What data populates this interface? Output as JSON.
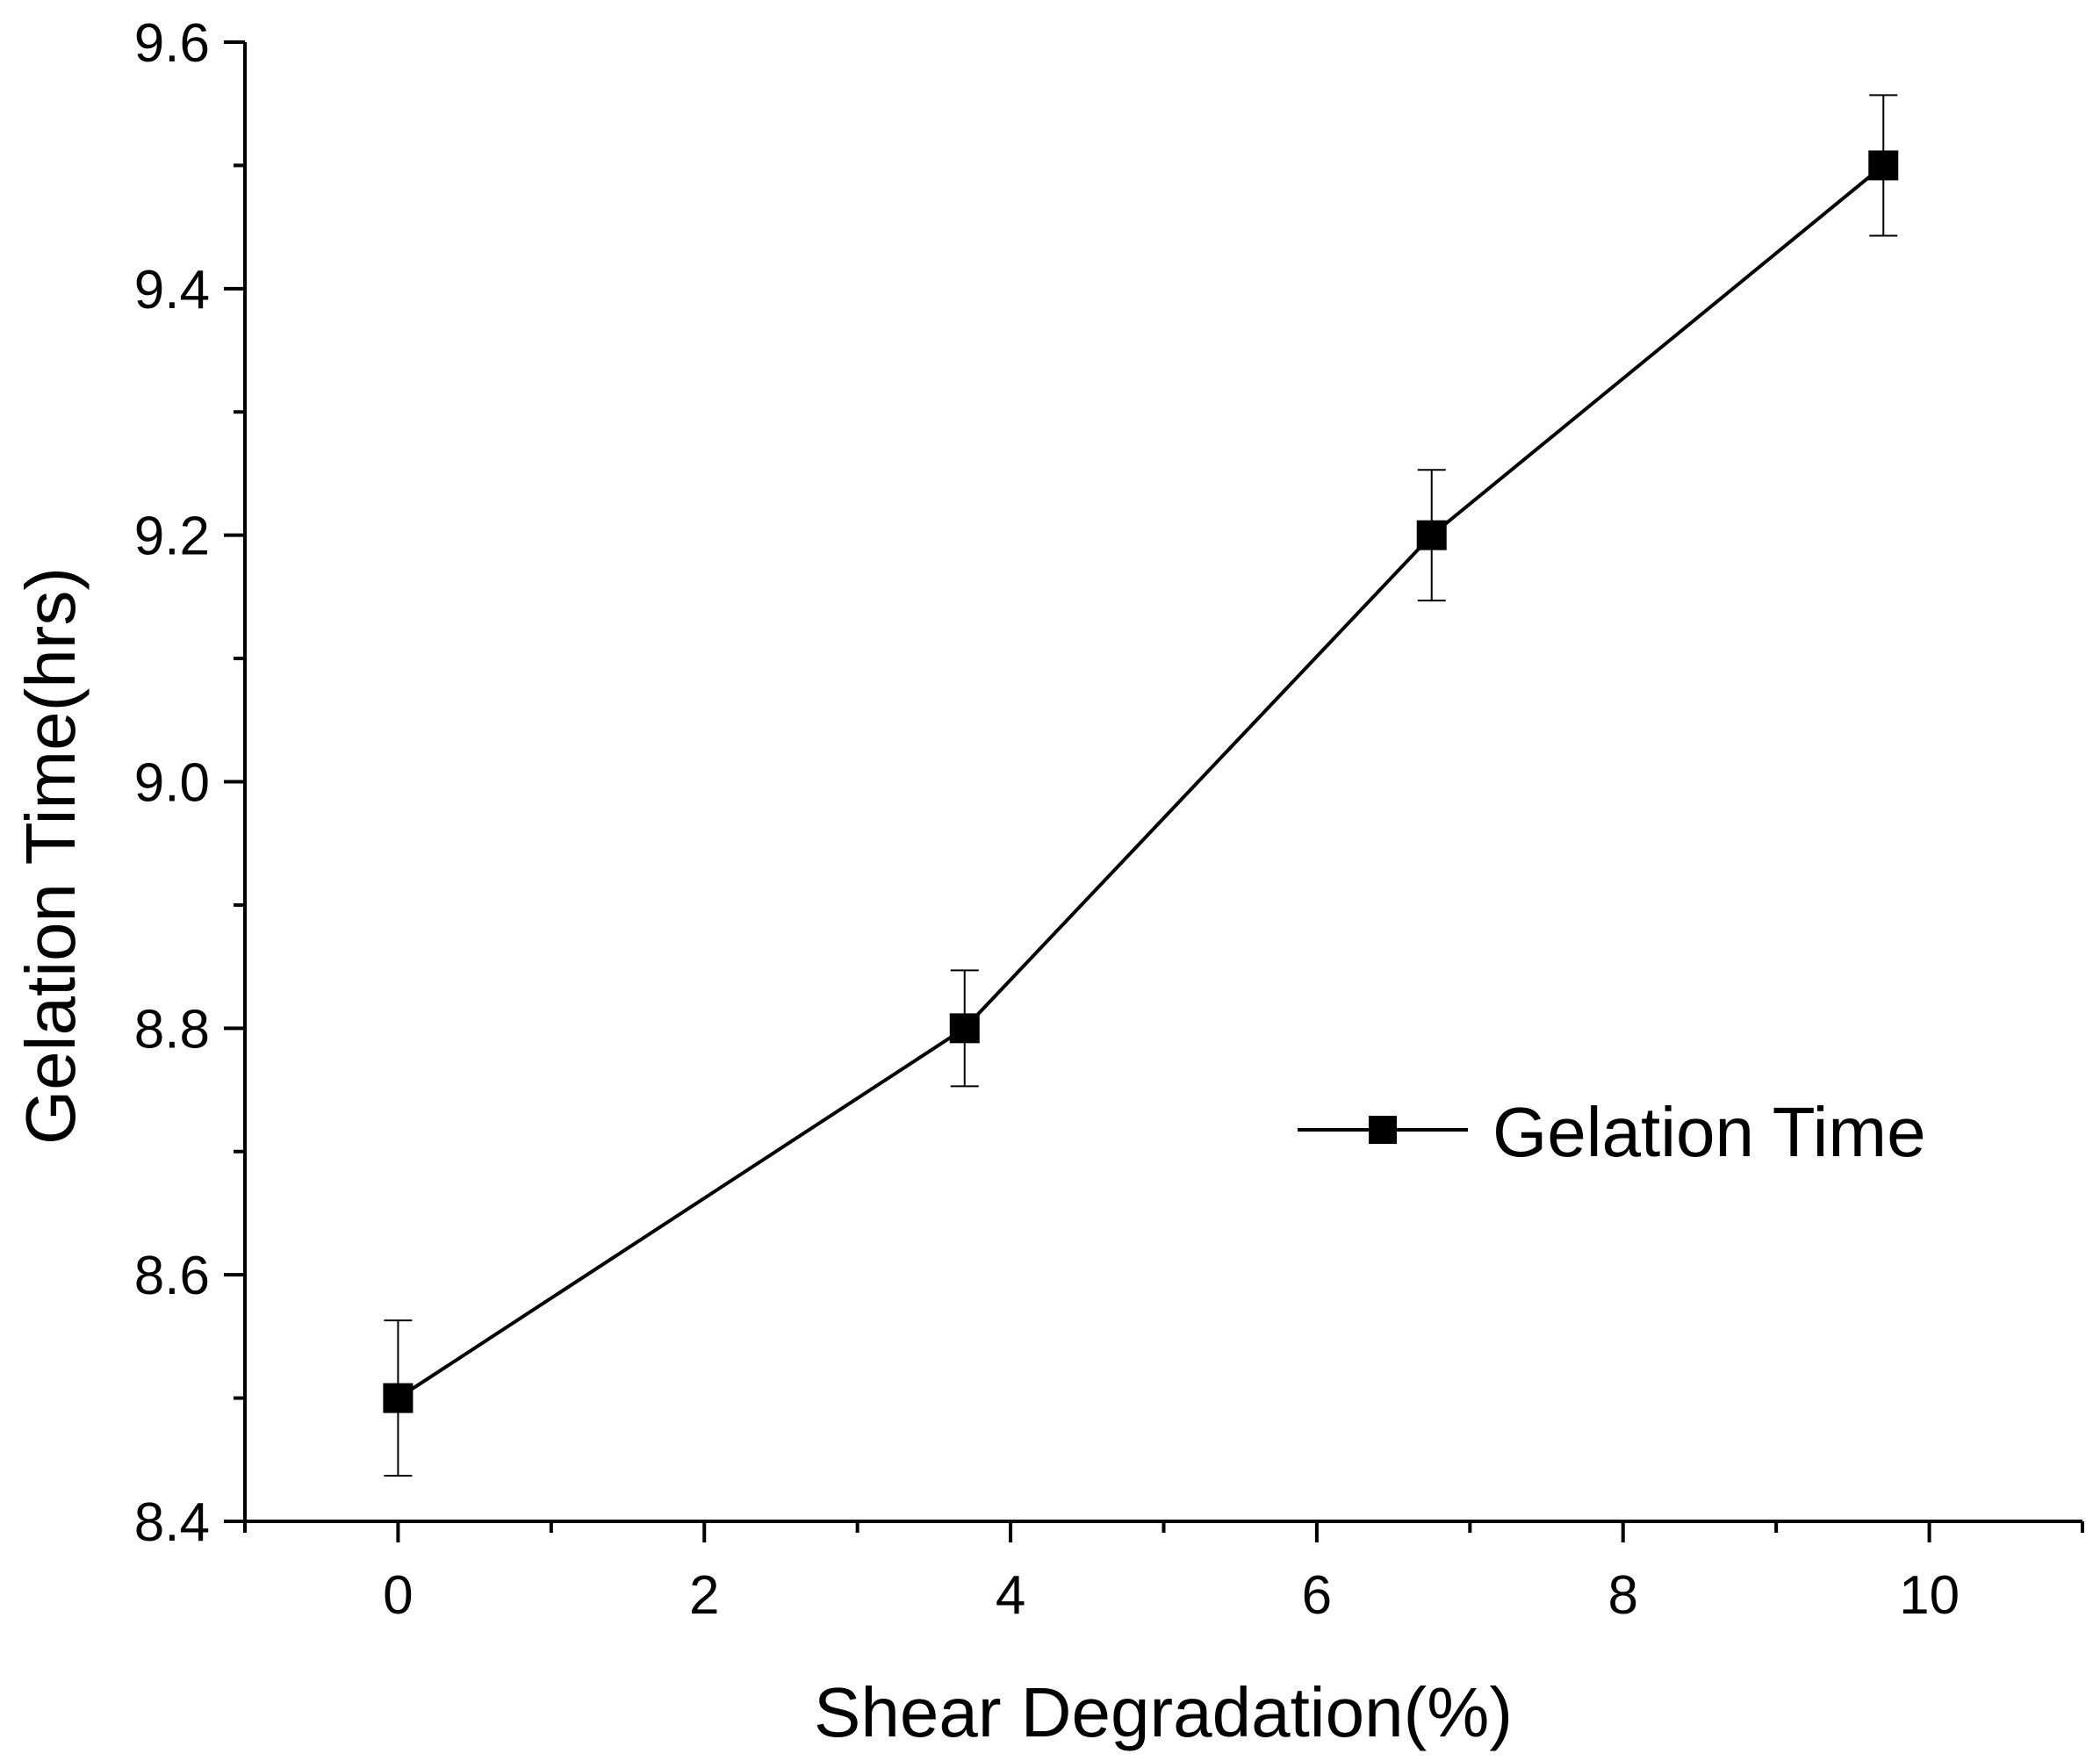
{
  "chart_data": {
    "type": "line",
    "title": "",
    "xlabel": "Shear Degradation(%)",
    "ylabel": "Gelation Time(hrs)",
    "xlim": [
      -1,
      11
    ],
    "ylim": [
      8.4,
      9.6
    ],
    "x_ticks": [
      0,
      2,
      4,
      6,
      8,
      10
    ],
    "x_tick_labels": [
      "0",
      "2",
      "4",
      "6",
      "8",
      "10"
    ],
    "x_minor_ticks": [
      -1,
      1,
      3,
      5,
      7,
      9,
      11
    ],
    "y_ticks": [
      8.4,
      8.6,
      8.8,
      9.0,
      9.2,
      9.4,
      9.6
    ],
    "y_tick_labels": [
      "8.4",
      "8.6",
      "8.8",
      "9.0",
      "9.2",
      "9.4",
      "9.6"
    ],
    "y_minor_ticks": [
      8.5,
      8.7,
      8.9,
      9.1,
      9.3,
      9.5
    ],
    "grid": false,
    "legend_position": "middle-right",
    "series": [
      {
        "name": "Gelation Time",
        "color": "#000000",
        "marker": "square",
        "x": [
          0,
          3.7,
          6.75,
          9.7
        ],
        "y": [
          8.5,
          8.8,
          9.2,
          9.5
        ],
        "err_plus": [
          0.063,
          0.047,
          0.053,
          0.057
        ],
        "err_minus": [
          0.063,
          0.047,
          0.053,
          0.057
        ]
      }
    ]
  }
}
